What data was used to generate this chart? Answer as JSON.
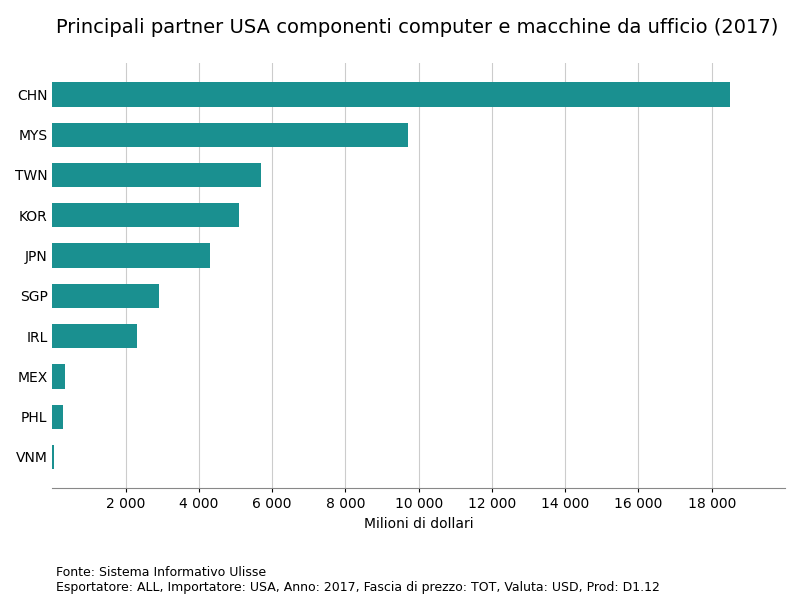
{
  "title": "Principali partner USA componenti computer e macchine da ufficio (2017)",
  "categories": [
    "CHN",
    "MYS",
    "TWN",
    "KOR",
    "JPN",
    "SGP",
    "IRL",
    "MEX",
    "PHL",
    "VNM"
  ],
  "values": [
    18500,
    9700,
    5700,
    5100,
    4300,
    2900,
    2300,
    350,
    300,
    50
  ],
  "bar_color": "#1a9090",
  "xlabel": "Milioni di dollari",
  "xlim": [
    0,
    20000
  ],
  "xticks": [
    2000,
    4000,
    6000,
    8000,
    10000,
    12000,
    14000,
    16000,
    18000
  ],
  "xtick_labels": [
    "2 000",
    "4 000",
    "6 000",
    "8 000",
    "10 000",
    "12 000",
    "14 000",
    "16 000",
    "18 000"
  ],
  "footnote1": "Fonte: Sistema Informativo Ulisse",
  "footnote2": "Esportatore: ALL, Importatore: USA, Anno: 2017, Fascia di prezzo: TOT, Valuta: USD, Prod: D1.12",
  "title_fontsize": 14,
  "label_fontsize": 10,
  "tick_fontsize": 10,
  "footnote_fontsize": 9,
  "background_color": "#ffffff",
  "grid_color": "#cccccc"
}
